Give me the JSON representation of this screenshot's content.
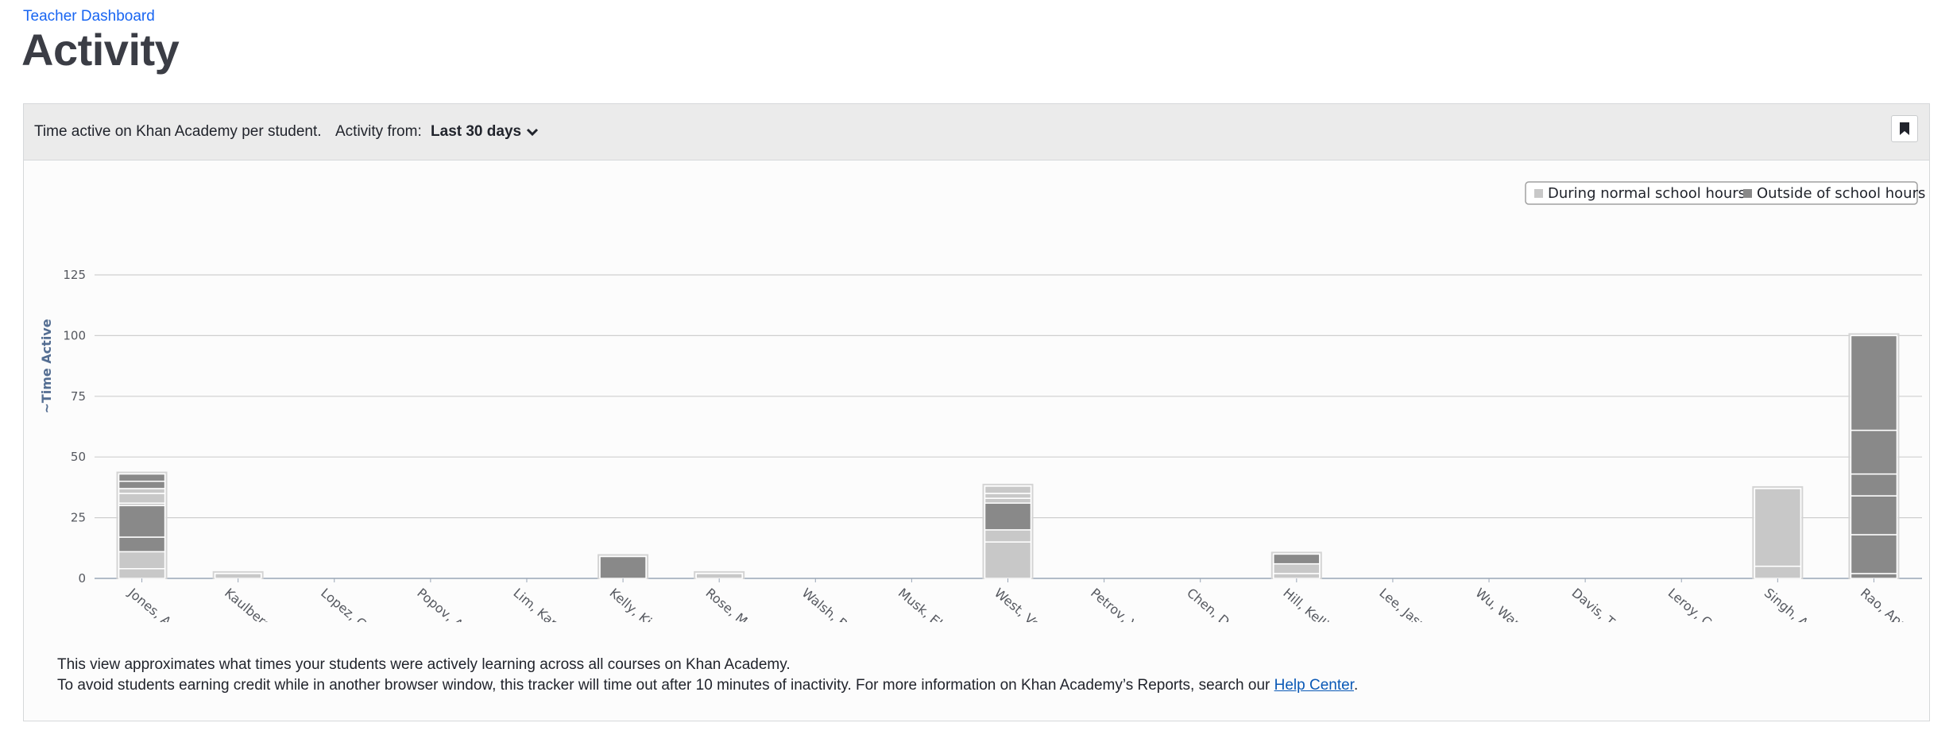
{
  "header": {
    "breadcrumb": "Teacher Dashboard",
    "title": "Activity"
  },
  "toolbar": {
    "description": "Time active on Khan Academy per student.",
    "filter_label": "Activity from:",
    "filter_value": "Last 30 days",
    "bookmark_icon": "bookmark-icon"
  },
  "colors": {
    "during_school": "#c8c8c8",
    "outside_school": "#898989"
  },
  "chart_data": {
    "type": "bar",
    "stacked": true,
    "ylabel": "~Time Active",
    "ylim": [
      0,
      125
    ],
    "yticks": [
      0,
      25,
      50,
      75,
      100,
      125
    ],
    "grid": true,
    "legend_position": "top-right",
    "legend": [
      "During normal school hours",
      "Outside of school hours"
    ],
    "categories": [
      "Jones, Aaliyah",
      "Kaulberg, Ankita",
      "Lopez, Carlos Garc...",
      "Popov, Alexei",
      "Lim, Kareem",
      "Kelly, Kiara",
      "Rose, Marjorie",
      "Walsh, Blair",
      "Musk, Elon",
      "West, Veronica",
      "Petrov, Vanya",
      "Chen, Duo",
      "Hill, Kelli",
      "Lee, Jasmine",
      "Wu, Wanda",
      "Davis, Torrance",
      "Leroy, Celine",
      "Singh, Amit",
      "Rao, Aparna"
    ],
    "stacks": [
      [
        {
          "v": 4,
          "t": "during"
        },
        {
          "v": 7,
          "t": "during"
        },
        {
          "v": 6,
          "t": "outside"
        },
        {
          "v": 13,
          "t": "outside"
        },
        {
          "v": 1,
          "t": "during"
        },
        {
          "v": 4,
          "t": "during"
        },
        {
          "v": 2,
          "t": "during"
        },
        {
          "v": 3,
          "t": "outside"
        },
        {
          "v": 3,
          "t": "outside"
        }
      ],
      [
        {
          "v": 2,
          "t": "during"
        }
      ],
      [],
      [],
      [],
      [
        {
          "v": 9,
          "t": "outside"
        }
      ],
      [
        {
          "v": 2,
          "t": "during"
        }
      ],
      [],
      [],
      [
        {
          "v": 15,
          "t": "during"
        },
        {
          "v": 5,
          "t": "during"
        },
        {
          "v": 11,
          "t": "outside"
        },
        {
          "v": 2,
          "t": "during"
        },
        {
          "v": 2,
          "t": "during"
        },
        {
          "v": 3,
          "t": "during"
        }
      ],
      [],
      [],
      [
        {
          "v": 2,
          "t": "during"
        },
        {
          "v": 4,
          "t": "during"
        },
        {
          "v": 4,
          "t": "outside"
        }
      ],
      [],
      [],
      [],
      [],
      [
        {
          "v": 5,
          "t": "during"
        },
        {
          "v": 32,
          "t": "during"
        }
      ],
      [
        {
          "v": 2,
          "t": "outside"
        },
        {
          "v": 16,
          "t": "outside"
        },
        {
          "v": 16,
          "t": "outside"
        },
        {
          "v": 9,
          "t": "outside"
        },
        {
          "v": 18,
          "t": "outside"
        },
        {
          "v": 39,
          "t": "outside"
        }
      ]
    ]
  },
  "footer": {
    "line1": "This view approximates what times your students were actively learning across all courses on Khan Academy.",
    "line2_before": "To avoid students earning credit while in another browser window, this tracker will time out after 10 minutes of inactivity. For more information on Khan Academy’s Reports, search our ",
    "help_link": "Help Center",
    "line2_after": "."
  }
}
